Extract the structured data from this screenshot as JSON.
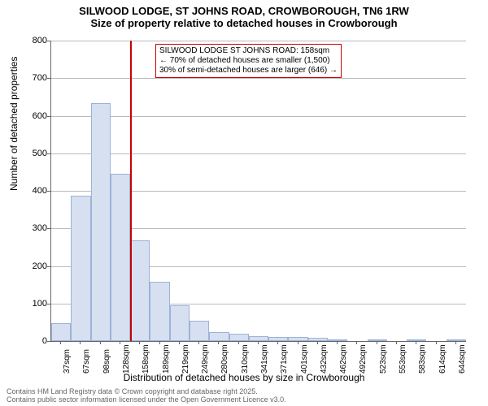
{
  "title_main": "SILWOOD LODGE, ST JOHNS ROAD, CROWBOROUGH, TN6 1RW",
  "title_sub": "Size of property relative to detached houses in Crowborough",
  "y_axis_label": "Number of detached properties",
  "x_axis_label": "Distribution of detached houses by size in Crowborough",
  "chart": {
    "type": "histogram",
    "ylim": [
      0,
      800
    ],
    "ytick_step": 100,
    "bar_fill": "#d6e0f0",
    "bar_stroke": "#9cb2d8",
    "grid_color": "#bbbbbb",
    "background_color": "#ffffff",
    "reference_line_color": "#cc0000",
    "reference_line_x_index": 4,
    "annotation_border": "#cc0000",
    "categories": [
      "37sqm",
      "67sqm",
      "98sqm",
      "128sqm",
      "158sqm",
      "189sqm",
      "219sqm",
      "249sqm",
      "280sqm",
      "310sqm",
      "341sqm",
      "371sqm",
      "401sqm",
      "432sqm",
      "462sqm",
      "492sqm",
      "523sqm",
      "553sqm",
      "583sqm",
      "614sqm",
      "644sqm"
    ],
    "values": [
      48,
      388,
      633,
      445,
      268,
      158,
      95,
      55,
      24,
      20,
      12,
      10,
      10,
      8,
      2,
      0,
      2,
      0,
      2,
      0,
      2
    ]
  },
  "annotation": {
    "line1": "SILWOOD LODGE ST JOHNS ROAD: 158sqm",
    "line2": "← 70% of detached houses are smaller (1,500)",
    "line3": "30% of semi-detached houses are larger (646) →"
  },
  "footer": {
    "line1": "Contains HM Land Registry data © Crown copyright and database right 2025.",
    "line2": "Contains public sector information licensed under the Open Government Licence v3.0."
  }
}
